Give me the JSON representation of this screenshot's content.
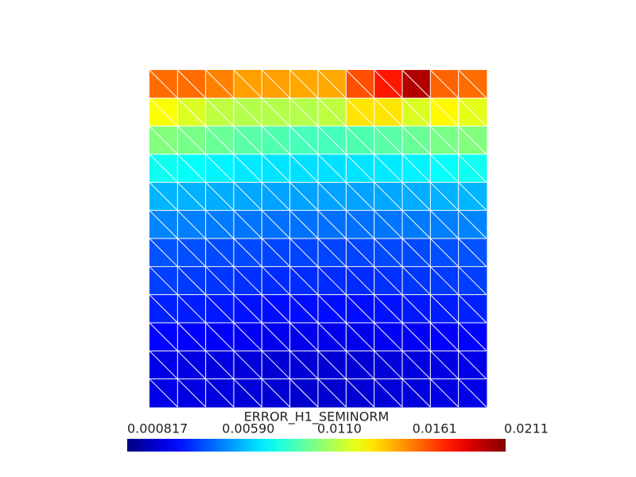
{
  "chart_data": {
    "type": "heatmap",
    "title": "ERROR_H1_SEMINORM",
    "colormap": "jet",
    "clim": [
      0.000817,
      0.0211
    ],
    "cticks": [
      0.000817,
      {
        "value": 0.0059,
        "label": "0.00590"
      },
      {
        "value": 0.011,
        "label": "0.0110"
      },
      0.0161,
      0.0211
    ],
    "values": [
      [
        0.0164,
        0.0164,
        0.016,
        0.0154,
        0.0154,
        0.0152,
        0.0152,
        0.017,
        0.0181,
        0.0201,
        0.0166,
        0.0164
      ],
      [
        0.0134,
        0.0128,
        0.0122,
        0.012,
        0.012,
        0.012,
        0.0122,
        0.014,
        0.014,
        0.0128,
        0.0136,
        0.013
      ],
      [
        0.011,
        0.0108,
        0.0105,
        0.0102,
        0.01,
        0.0098,
        0.0098,
        0.01,
        0.0102,
        0.0105,
        0.0108,
        0.011
      ],
      [
        0.0087,
        0.0085,
        0.0082,
        0.008,
        0.0079,
        0.0078,
        0.0078,
        0.0079,
        0.008,
        0.0082,
        0.0085,
        0.0087
      ],
      [
        0.007,
        0.0069,
        0.0068,
        0.0067,
        0.0066,
        0.0066,
        0.0066,
        0.0066,
        0.0067,
        0.0068,
        0.0069,
        0.007
      ],
      [
        0.006,
        0.0059,
        0.0058,
        0.0057,
        0.0056,
        0.0056,
        0.0056,
        0.0056,
        0.0057,
        0.0058,
        0.0059,
        0.006
      ],
      [
        0.005,
        0.0049,
        0.0048,
        0.0048,
        0.0047,
        0.0047,
        0.0047,
        0.0047,
        0.0048,
        0.0048,
        0.0049,
        0.005
      ],
      [
        0.0046,
        0.0045,
        0.0044,
        0.0043,
        0.0042,
        0.0042,
        0.0042,
        0.0042,
        0.0043,
        0.0044,
        0.0045,
        0.0046
      ],
      [
        0.004,
        0.0039,
        0.0038,
        0.0037,
        0.0036,
        0.0036,
        0.0036,
        0.0036,
        0.0037,
        0.0038,
        0.0039,
        0.004
      ],
      [
        0.0034,
        0.0033,
        0.0032,
        0.0031,
        0.003,
        0.003,
        0.003,
        0.003,
        0.0031,
        0.0032,
        0.0033,
        0.0034
      ],
      [
        0.0029,
        0.0028,
        0.0027,
        0.0026,
        0.0025,
        0.0025,
        0.0025,
        0.0025,
        0.0026,
        0.0027,
        0.0028,
        0.0029
      ],
      [
        0.0029,
        0.0028,
        0.0027,
        0.0026,
        0.0025,
        0.0024,
        0.0024,
        0.0025,
        0.0026,
        0.0027,
        0.0028,
        0.0029
      ]
    ]
  }
}
